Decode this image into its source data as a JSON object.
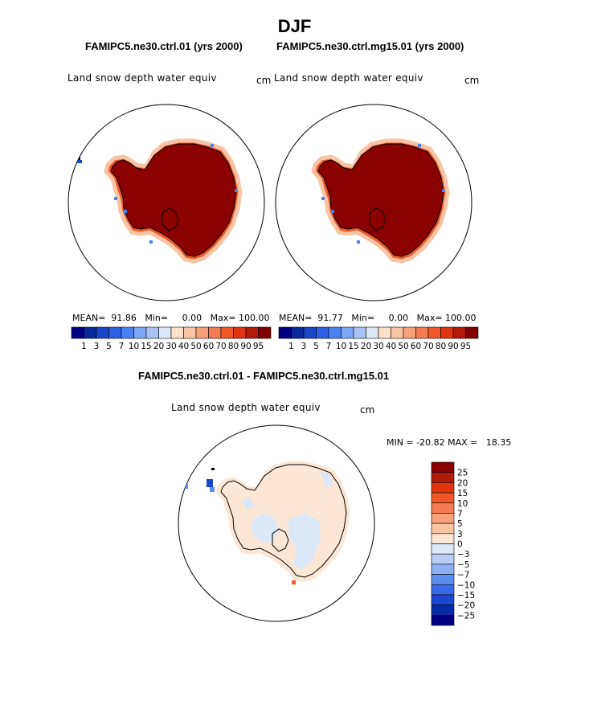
{
  "title": "DJF",
  "panels": [
    {
      "title": "FAMIPC5.ne30.ctrl.01 (yrs 2000)",
      "variable": "Land snow depth water equiv",
      "units": "cm",
      "stats": "MEAN=  91.86   Min=     0.00   Max= 100.00"
    },
    {
      "title": "FAMIPC5.ne30.ctrl.mg15.01 (yrs 2000)",
      "variable": "Land snow depth water equiv",
      "units": "cm",
      "stats": "MEAN=  91.77   Min=     0.00   Max= 100.00"
    }
  ],
  "diff_panel": {
    "title": "FAMIPC5.ne30.ctrl.01 - FAMIPC5.ne30.ctrl.mg15.01",
    "variable": "Land snow depth water equiv",
    "units": "cm",
    "stats": "MIN = -20.82 MAX =   18.35"
  },
  "colorbar_abs": {
    "labels": [
      "1",
      "3",
      "5",
      "7",
      "10",
      "15",
      "20",
      "30",
      "40",
      "50",
      "60",
      "70",
      "80",
      "90",
      "95"
    ],
    "colors": [
      "#000080",
      "#0a2a9c",
      "#1846c8",
      "#2c60e6",
      "#4a82f2",
      "#7ea6f4",
      "#a8c4f4",
      "#dce8f8",
      "#fde0c8",
      "#f9c4a4",
      "#f7a07a",
      "#f47c52",
      "#f05828",
      "#e03410",
      "#b01a06",
      "#800000"
    ]
  },
  "colorbar_diff": {
    "labels": [
      "25",
      "20",
      "15",
      "10",
      "7",
      "5",
      "3",
      "0",
      "-3",
      "-5",
      "-7",
      "-10",
      "-15",
      "-20",
      "-25"
    ],
    "colors": [
      "#8b0000",
      "#b01a06",
      "#e03410",
      "#f05828",
      "#f47c52",
      "#f7a07a",
      "#f9c4a4",
      "#fde6d4",
      "#dce8f8",
      "#b8cef6",
      "#8eb0f4",
      "#5c8ef0",
      "#3a6ae8",
      "#1a46d0",
      "#0a2aa8",
      "#000080"
    ]
  },
  "map_colors": {
    "snow_high": "#8b0000",
    "fringe_orange": "#f05828",
    "fringe_light": "#f9c4a4",
    "fringe_blue": "#4a82f2",
    "diff_pos": "#fde6d4",
    "diff_neg": "#dce8f8",
    "diff_strong_neg": "#1a46d0"
  }
}
